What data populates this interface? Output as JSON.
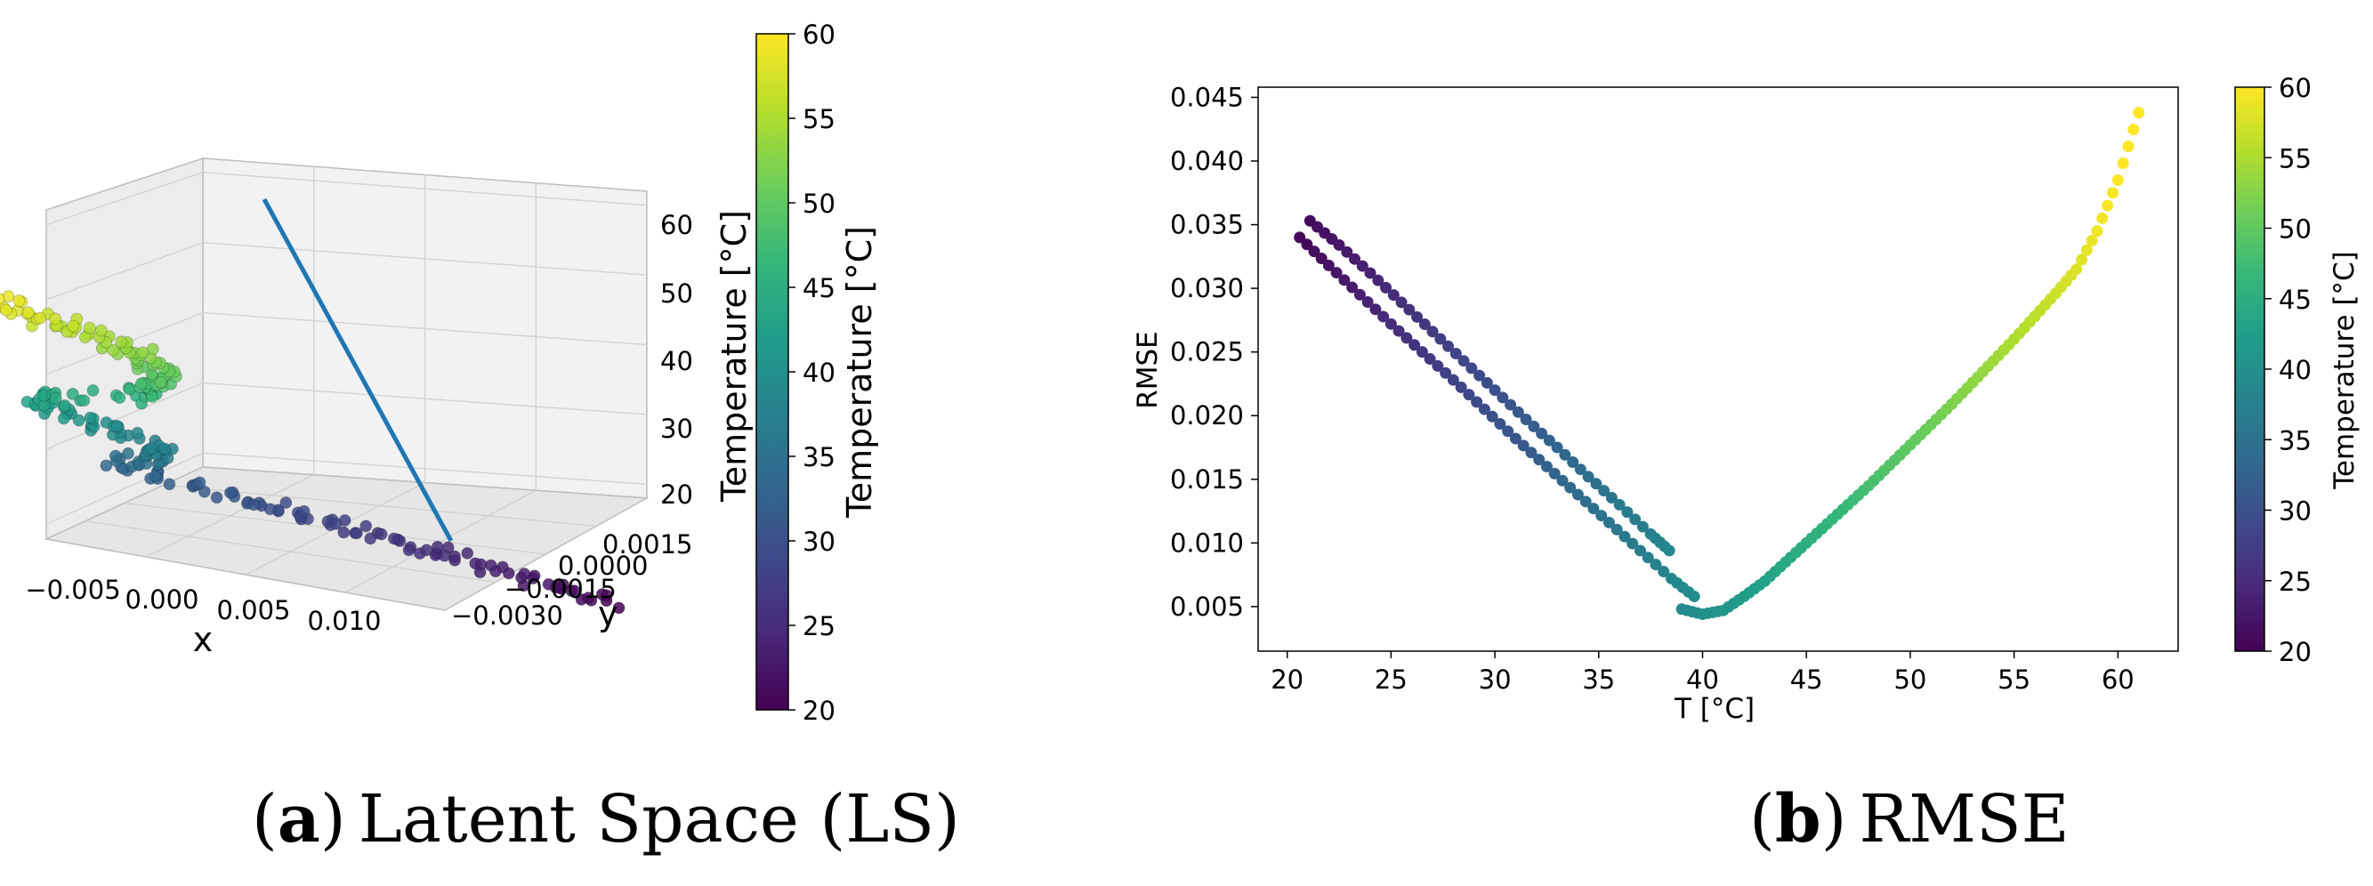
{
  "captions": {
    "a": {
      "letter": "a",
      "open": "(",
      "close": ")",
      "text": "Latent Space (LS)"
    },
    "b": {
      "letter": "b",
      "open": "(",
      "close": ")",
      "text": "RMSE"
    }
  },
  "colors": {
    "viridis": [
      "#440154",
      "#482878",
      "#3e4989",
      "#31688e",
      "#26828e",
      "#1f9e89",
      "#35b779",
      "#6ece58",
      "#b5de2b",
      "#fde725"
    ],
    "trajectory_line": "#1f77b4",
    "pane": "#f2f2f2",
    "grid": "#d8d8d8"
  },
  "chart_data": [
    {
      "type": "scatter3d",
      "caption_key": "a",
      "xlabel": "x",
      "ylabel": "y",
      "zlabel": "Temperature [°C]",
      "x_ticks": [
        "−0.005",
        "0.000",
        "0.005",
        "0.010"
      ],
      "y_ticks": [
        "0.0015",
        "0.0000",
        "−0.0015",
        "−0.0030"
      ],
      "z_ticks": [
        "60",
        "50",
        "40",
        "30",
        "20"
      ],
      "xlim": [
        -0.008,
        0.012
      ],
      "ylim": [
        -0.004,
        0.002
      ],
      "zlim": [
        18,
        62
      ],
      "color_by": "temperature",
      "line": {
        "from": [
          -0.006,
          0.0016,
          61
        ],
        "to": [
          0.011,
          -0.0008,
          18
        ]
      },
      "colorbar": {
        "label": "Temperature [°C]",
        "ticks": [
          "60",
          "55",
          "50",
          "45",
          "40",
          "35",
          "30",
          "25",
          "20"
        ],
        "range": [
          20,
          60
        ]
      }
    },
    {
      "type": "scatter",
      "caption_key": "b",
      "xlabel": "T [°C]",
      "ylabel": "RMSE",
      "xlim": [
        18.6,
        62.9
      ],
      "ylim": [
        0.0015,
        0.0458
      ],
      "x_ticks": [
        20,
        25,
        30,
        35,
        40,
        45,
        50,
        55,
        60
      ],
      "y_ticks": [
        0.005,
        0.01,
        0.015,
        0.02,
        0.025,
        0.03,
        0.035,
        0.04,
        0.045
      ],
      "y_tick_labels": [
        "0.005",
        "0.010",
        "0.015",
        "0.020",
        "0.025",
        "0.030",
        "0.035",
        "0.040",
        "0.045"
      ],
      "color_by": "temperature",
      "series": [
        {
          "x": [
            20.6,
            22,
            23.5,
            25,
            26.5,
            28,
            29.5,
            31,
            32.5,
            34,
            35.5,
            37,
            38.5,
            39.6
          ],
          "y": [
            0.034,
            0.0318,
            0.0295,
            0.0272,
            0.025,
            0.0228,
            0.0205,
            0.0182,
            0.016,
            0.0138,
            0.0116,
            0.0094,
            0.0072,
            0.0058
          ]
        },
        {
          "x": [
            21.1,
            22.5,
            24,
            25.5,
            27,
            28.5,
            30,
            31.5,
            33,
            34.5,
            36,
            37.5,
            38.4
          ],
          "y": [
            0.0353,
            0.0334,
            0.0312,
            0.0289,
            0.0266,
            0.0243,
            0.022,
            0.0197,
            0.0175,
            0.0152,
            0.013,
            0.0107,
            0.0094
          ]
        },
        {
          "x": [
            39,
            40,
            41,
            42,
            43,
            44,
            45,
            46,
            47,
            48,
            49,
            50,
            51,
            52,
            53,
            54,
            55,
            56,
            57,
            58,
            59,
            60,
            61
          ],
          "y": [
            0.0048,
            0.0044,
            0.0047,
            0.0058,
            0.007,
            0.0085,
            0.01,
            0.0115,
            0.013,
            0.0145,
            0.0161,
            0.0177,
            0.0193,
            0.0209,
            0.0226,
            0.0243,
            0.026,
            0.0278,
            0.0296,
            0.0315,
            0.0345,
            0.0385,
            0.0438
          ]
        }
      ],
      "colorbar": {
        "label": "Temperature [°C]",
        "ticks": [
          "60",
          "55",
          "50",
          "45",
          "40",
          "35",
          "30",
          "25",
          "20"
        ],
        "range": [
          20,
          60
        ]
      }
    }
  ]
}
